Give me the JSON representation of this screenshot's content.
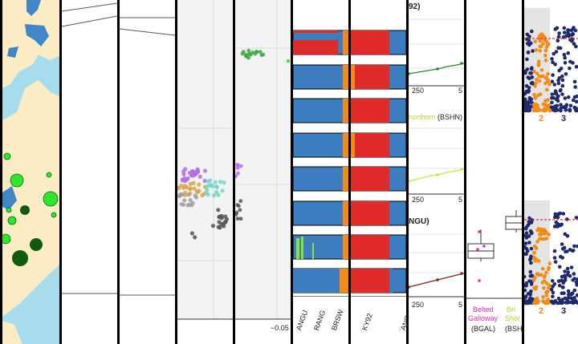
{
  "panels": {
    "map": {
      "land_color": "#fbecc4",
      "water_color": "#a6dceb",
      "dot_bright": "#2ee62e",
      "dot_dark": "#0f5a0f"
    },
    "pca": {
      "tick_label": "−0.05"
    },
    "structure": {
      "panel1_labels": [
        "ANGU",
        "RANG",
        "BRSW"
      ],
      "panel2_labels": [
        "KY92",
        "ANG"
      ],
      "colors": {
        "red": "#e02a2a",
        "blue": "#3c7dc0",
        "orange": "#f38b16",
        "green": "#8de03a"
      }
    },
    "lines": {
      "top_label": "92)",
      "mid_label_colored": "horthorn",
      "mid_label_suffix": " (BSHN)",
      "bottom_label": "NGU)",
      "ticks": [
        "250",
        "5"
      ]
    },
    "boxplot": {
      "cat1_name": "Belted",
      "cat1_name2": "Galloway",
      "cat1_abbr": "(BGAL)",
      "cat2_name": "Bri",
      "cat2_name2": "Shor",
      "cat2_abbr": "(BSH"
    },
    "manhattan": {
      "top_ticks": [
        "2",
        "3"
      ],
      "bottom_ticks": [
        "2",
        "3"
      ],
      "threshold_color": "#e03030",
      "odd_color": "#1f2a6e",
      "even_color": "#f38b16"
    },
    "misc": {
      "stray_char": "("
    }
  }
}
